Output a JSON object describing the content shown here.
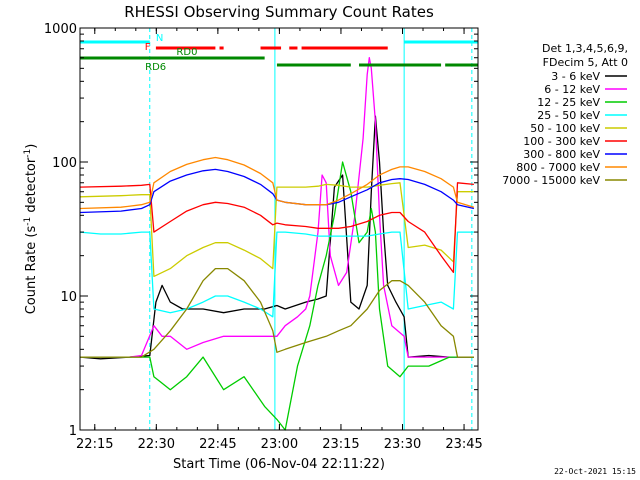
{
  "chart_data": {
    "type": "line",
    "title": "RHESSI Observing Summary Count Rates",
    "xlabel": "Start Time (06-Nov-04 22:11:22)",
    "ylabel_parts": [
      "Count Rate (s",
      "-1",
      " detector",
      "-1",
      ")"
    ],
    "yscale": "log",
    "ylim": [
      1,
      1000
    ],
    "xlim_minutes": [
      0,
      97
    ],
    "xticks": [
      {
        "label": "22:15",
        "m": 3.6
      },
      {
        "label": "22:30",
        "m": 18.6
      },
      {
        "label": "22:45",
        "m": 33.6
      },
      {
        "label": "23:00",
        "m": 48.6
      },
      {
        "label": "23:15",
        "m": 63.6
      },
      {
        "label": "23:30",
        "m": 78.6
      },
      {
        "label": "23:45",
        "m": 93.6
      }
    ],
    "yticks": [
      {
        "label": "1",
        "v": 1
      },
      {
        "label": "10",
        "v": 10
      },
      {
        "label": "100",
        "v": 100
      },
      {
        "label": "1000",
        "v": 1000
      }
    ],
    "legend": {
      "placement": "right",
      "header": [
        "Det 1,3,4,5,6,9,",
        "FDecim 5, Att 0"
      ]
    },
    "series": [
      {
        "name": "3 - 6 keV",
        "color": "#000000",
        "points": [
          [
            0,
            3.5
          ],
          [
            5,
            3.4
          ],
          [
            12,
            3.5
          ],
          [
            17,
            3.6
          ],
          [
            18.5,
            9
          ],
          [
            20,
            12
          ],
          [
            22,
            9
          ],
          [
            25,
            8
          ],
          [
            30,
            8
          ],
          [
            35,
            7.5
          ],
          [
            40,
            8
          ],
          [
            45,
            8
          ],
          [
            48,
            8.5
          ],
          [
            50,
            8
          ],
          [
            55,
            9
          ],
          [
            58,
            9.5
          ],
          [
            60,
            10
          ],
          [
            62,
            65
          ],
          [
            64,
            80
          ],
          [
            66,
            9
          ],
          [
            68,
            8
          ],
          [
            70,
            12
          ],
          [
            71,
            60
          ],
          [
            72,
            220
          ],
          [
            73,
            100
          ],
          [
            74,
            30
          ],
          [
            75,
            12
          ],
          [
            77,
            9
          ],
          [
            79,
            7
          ],
          [
            80,
            3.5
          ],
          [
            85,
            3.6
          ],
          [
            90,
            3.5
          ],
          [
            96,
            3.5
          ]
        ]
      },
      {
        "name": "6 - 12 keV",
        "color": "#ff00ff",
        "points": [
          [
            0,
            3.5
          ],
          [
            12,
            3.5
          ],
          [
            15,
            3.6
          ],
          [
            18,
            6
          ],
          [
            20,
            5
          ],
          [
            22,
            5
          ],
          [
            26,
            4
          ],
          [
            30,
            4.5
          ],
          [
            35,
            5
          ],
          [
            40,
            5
          ],
          [
            45,
            5
          ],
          [
            48,
            5
          ],
          [
            50,
            6
          ],
          [
            53,
            7
          ],
          [
            55,
            8
          ],
          [
            56,
            10
          ],
          [
            58,
            30
          ],
          [
            59,
            80
          ],
          [
            60,
            70
          ],
          [
            61,
            20
          ],
          [
            63,
            12
          ],
          [
            65,
            15
          ],
          [
            67,
            40
          ],
          [
            69,
            150
          ],
          [
            70,
            450
          ],
          [
            70.5,
            600
          ],
          [
            71,
            500
          ],
          [
            72,
            200
          ],
          [
            73,
            40
          ],
          [
            74,
            12
          ],
          [
            76,
            6
          ],
          [
            79,
            5
          ],
          [
            80,
            3.5
          ],
          [
            96,
            3.5
          ]
        ]
      },
      {
        "name": "12 - 25 keV",
        "color": "#00cc00",
        "points": [
          [
            0,
            3.5
          ],
          [
            12,
            3.5
          ],
          [
            17,
            3.5
          ],
          [
            18,
            2.5
          ],
          [
            22,
            2
          ],
          [
            26,
            2.5
          ],
          [
            30,
            3.5
          ],
          [
            35,
            2
          ],
          [
            40,
            2.5
          ],
          [
            45,
            1.5
          ],
          [
            48,
            1.2
          ],
          [
            50,
            1
          ],
          [
            53,
            3
          ],
          [
            56,
            6
          ],
          [
            58,
            12
          ],
          [
            60,
            20
          ],
          [
            62,
            40
          ],
          [
            64,
            100
          ],
          [
            66,
            60
          ],
          [
            68,
            25
          ],
          [
            70,
            30
          ],
          [
            71,
            45
          ],
          [
            72,
            30
          ],
          [
            73,
            8
          ],
          [
            75,
            3
          ],
          [
            78,
            2.5
          ],
          [
            80,
            3
          ],
          [
            85,
            3
          ],
          [
            90,
            3.5
          ],
          [
            96,
            3.5
          ]
        ]
      },
      {
        "name": "25 - 50 keV",
        "color": "#00ffff",
        "points": [
          [
            0,
            30
          ],
          [
            5,
            29
          ],
          [
            10,
            29
          ],
          [
            15,
            30
          ],
          [
            17,
            30
          ],
          [
            18,
            8
          ],
          [
            22,
            7.5
          ],
          [
            26,
            8
          ],
          [
            30,
            9
          ],
          [
            33,
            10
          ],
          [
            36,
            10
          ],
          [
            40,
            9
          ],
          [
            44,
            8
          ],
          [
            47,
            7
          ],
          [
            48,
            30
          ],
          [
            50,
            30
          ],
          [
            55,
            29
          ],
          [
            58,
            28
          ],
          [
            60,
            28
          ],
          [
            63,
            28
          ],
          [
            66,
            28
          ],
          [
            70,
            28
          ],
          [
            73,
            29
          ],
          [
            76,
            30
          ],
          [
            78,
            30
          ],
          [
            80,
            8
          ],
          [
            84,
            8.5
          ],
          [
            88,
            9
          ],
          [
            91,
            8
          ],
          [
            92,
            30
          ],
          [
            96,
            30
          ]
        ]
      },
      {
        "name": "50 - 100 keV",
        "color": "#cccc00",
        "points": [
          [
            0,
            55
          ],
          [
            10,
            56
          ],
          [
            15,
            57
          ],
          [
            17,
            57
          ],
          [
            18,
            14
          ],
          [
            22,
            16
          ],
          [
            26,
            20
          ],
          [
            30,
            23
          ],
          [
            33,
            25
          ],
          [
            36,
            25
          ],
          [
            40,
            22
          ],
          [
            44,
            19
          ],
          [
            47,
            16
          ],
          [
            48,
            65
          ],
          [
            50,
            65
          ],
          [
            55,
            65
          ],
          [
            58,
            66
          ],
          [
            60,
            68
          ],
          [
            63,
            67
          ],
          [
            66,
            65
          ],
          [
            70,
            65
          ],
          [
            73,
            67
          ],
          [
            76,
            69
          ],
          [
            78,
            70
          ],
          [
            80,
            23
          ],
          [
            84,
            24
          ],
          [
            88,
            22
          ],
          [
            91,
            18
          ],
          [
            92,
            60
          ],
          [
            96,
            60
          ]
        ]
      },
      {
        "name": "100 - 300 keV",
        "color": "#ff0000",
        "points": [
          [
            0,
            65
          ],
          [
            10,
            66
          ],
          [
            15,
            67
          ],
          [
            17,
            68
          ],
          [
            18,
            30
          ],
          [
            22,
            36
          ],
          [
            26,
            43
          ],
          [
            30,
            48
          ],
          [
            33,
            50
          ],
          [
            36,
            49
          ],
          [
            40,
            46
          ],
          [
            44,
            40
          ],
          [
            47,
            34
          ],
          [
            48,
            35
          ],
          [
            50,
            34
          ],
          [
            55,
            33
          ],
          [
            58,
            32
          ],
          [
            60,
            32
          ],
          [
            63,
            32
          ],
          [
            66,
            33
          ],
          [
            70,
            36
          ],
          [
            73,
            40
          ],
          [
            76,
            42
          ],
          [
            78,
            42
          ],
          [
            80,
            36
          ],
          [
            84,
            30
          ],
          [
            88,
            20
          ],
          [
            91,
            15
          ],
          [
            92,
            70
          ],
          [
            96,
            68
          ]
        ]
      },
      {
        "name": "300 - 800 keV",
        "color": "#0000ff",
        "points": [
          [
            0,
            42
          ],
          [
            10,
            43
          ],
          [
            15,
            45
          ],
          [
            17,
            48
          ],
          [
            18,
            60
          ],
          [
            22,
            72
          ],
          [
            26,
            80
          ],
          [
            30,
            86
          ],
          [
            33,
            88
          ],
          [
            36,
            85
          ],
          [
            40,
            78
          ],
          [
            44,
            68
          ],
          [
            47,
            58
          ],
          [
            48,
            52
          ],
          [
            50,
            50
          ],
          [
            55,
            48
          ],
          [
            58,
            48
          ],
          [
            60,
            48
          ],
          [
            63,
            50
          ],
          [
            66,
            55
          ],
          [
            70,
            62
          ],
          [
            73,
            70
          ],
          [
            76,
            74
          ],
          [
            78,
            75
          ],
          [
            80,
            74
          ],
          [
            84,
            68
          ],
          [
            88,
            60
          ],
          [
            91,
            52
          ],
          [
            92,
            48
          ],
          [
            96,
            45
          ]
        ]
      },
      {
        "name": "800 - 7000 keV",
        "color": "#ff8800",
        "points": [
          [
            0,
            45
          ],
          [
            10,
            46
          ],
          [
            15,
            48
          ],
          [
            17,
            50
          ],
          [
            18,
            70
          ],
          [
            22,
            85
          ],
          [
            26,
            96
          ],
          [
            30,
            104
          ],
          [
            33,
            108
          ],
          [
            36,
            104
          ],
          [
            40,
            95
          ],
          [
            44,
            82
          ],
          [
            47,
            70
          ],
          [
            48,
            52
          ],
          [
            50,
            50
          ],
          [
            55,
            48
          ],
          [
            58,
            48
          ],
          [
            60,
            48
          ],
          [
            63,
            52
          ],
          [
            66,
            58
          ],
          [
            70,
            68
          ],
          [
            73,
            80
          ],
          [
            76,
            88
          ],
          [
            78,
            92
          ],
          [
            80,
            92
          ],
          [
            84,
            85
          ],
          [
            88,
            75
          ],
          [
            91,
            65
          ],
          [
            92,
            50
          ],
          [
            96,
            46
          ]
        ]
      },
      {
        "name": "7000 - 15000 keV",
        "color": "#888800",
        "points": [
          [
            0,
            3.5
          ],
          [
            5,
            3.5
          ],
          [
            10,
            3.5
          ],
          [
            15,
            3.5
          ],
          [
            18,
            4
          ],
          [
            22,
            5.5
          ],
          [
            26,
            8
          ],
          [
            30,
            13
          ],
          [
            33,
            16
          ],
          [
            36,
            16
          ],
          [
            40,
            13
          ],
          [
            44,
            9
          ],
          [
            47,
            5.5
          ],
          [
            48,
            3.8
          ],
          [
            50,
            4
          ],
          [
            55,
            4.5
          ],
          [
            58,
            4.8
          ],
          [
            60,
            5
          ],
          [
            63,
            5.5
          ],
          [
            66,
            6
          ],
          [
            70,
            8
          ],
          [
            73,
            11
          ],
          [
            76,
            13
          ],
          [
            78,
            13
          ],
          [
            80,
            12
          ],
          [
            84,
            9
          ],
          [
            88,
            6
          ],
          [
            91,
            5
          ],
          [
            92,
            3.5
          ],
          [
            96,
            3.5
          ]
        ]
      }
    ],
    "status_bars": [
      {
        "name": "N",
        "color": "#00ffff",
        "segments": [
          [
            0,
            17
          ],
          [
            79,
            97
          ]
        ]
      },
      {
        "name": "F",
        "color": "#ff0000",
        "segments": [
          [
            18.5,
            33
          ],
          [
            34,
            35
          ],
          [
            44,
            49
          ],
          [
            51,
            53
          ],
          [
            54,
            75
          ]
        ]
      },
      {
        "name": "RD0",
        "color": "#008800",
        "segments": [
          [
            0,
            45
          ]
        ]
      },
      {
        "name": "RD6",
        "color": "#008800",
        "segments": [
          [
            48,
            66
          ],
          [
            68,
            88
          ],
          [
            89,
            97
          ]
        ]
      }
    ],
    "vertical_markers": [
      {
        "m": 17.0,
        "color": "#00ffff",
        "style": "dashed"
      },
      {
        "m": 47.5,
        "color": "#00ffff",
        "style": "solid"
      },
      {
        "m": 79.0,
        "color": "#00ffff",
        "style": "solid"
      },
      {
        "m": 95.5,
        "color": "#00ffff",
        "style": "dashed"
      }
    ],
    "footer_date": "22-Oct-2021 15:15"
  }
}
